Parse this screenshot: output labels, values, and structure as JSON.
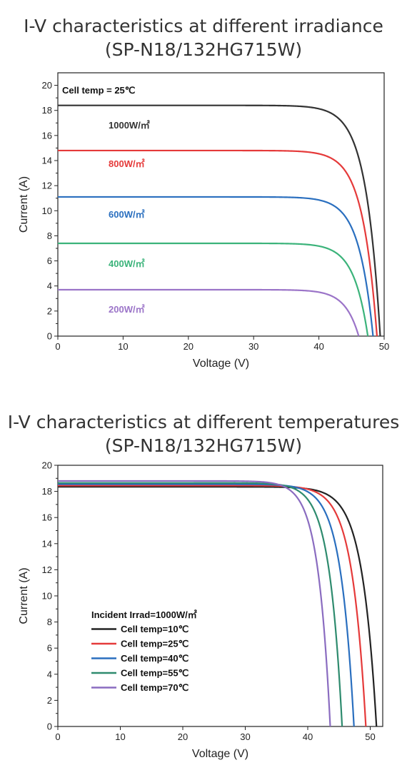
{
  "chart_data": [
    {
      "type": "line",
      "title": "I-V characteristics at different irradiance",
      "subtitle": "(SP-N18/132HG715W)",
      "xlabel": "Voltage (V)",
      "ylabel": "Current (A)",
      "xlim": [
        0,
        50
      ],
      "ylim": [
        0,
        21
      ],
      "xticks": [
        0,
        10,
        20,
        30,
        40,
        50
      ],
      "yticks": [
        0,
        2,
        4,
        6,
        8,
        10,
        12,
        14,
        16,
        18,
        20
      ],
      "annotation": "Cell temp = 25℃",
      "series": [
        {
          "name": "1000W/㎡",
          "color": "#333333",
          "isc": 18.4,
          "voc": 49.4
        },
        {
          "name": "800W/㎡",
          "color": "#e53a3a",
          "isc": 14.8,
          "voc": 48.9
        },
        {
          "name": "600W/㎡",
          "color": "#2a6fbf",
          "isc": 11.1,
          "voc": 48.3
        },
        {
          "name": "400W/㎡",
          "color": "#3bb37a",
          "isc": 7.4,
          "voc": 47.5
        },
        {
          "name": "200W/㎡",
          "color": "#9b74c8",
          "isc": 3.7,
          "voc": 46.1
        }
      ]
    },
    {
      "type": "line",
      "title": "I-V characteristics at different temperatures",
      "subtitle": "(SP-N18/132HG715W)",
      "xlabel": "Voltage (V)",
      "ylabel": "Current (A)",
      "xlim": [
        0,
        52
      ],
      "ylim": [
        0,
        20
      ],
      "xticks": [
        0,
        10,
        20,
        30,
        40,
        50
      ],
      "yticks": [
        0,
        2,
        4,
        6,
        8,
        10,
        12,
        14,
        16,
        18,
        20
      ],
      "legend_title": "Incident Irrad=1000W/㎡",
      "legend_position": "bottom-left",
      "series": [
        {
          "name": "Cell temp=10℃",
          "color": "#222222",
          "isc": 18.35,
          "voc": 51.0
        },
        {
          "name": "Cell temp=25℃",
          "color": "#e53a3a",
          "isc": 18.45,
          "voc": 49.3
        },
        {
          "name": "Cell temp=40℃",
          "color": "#2a6fbf",
          "isc": 18.55,
          "voc": 47.4
        },
        {
          "name": "Cell temp=55℃",
          "color": "#2e8b6e",
          "isc": 18.65,
          "voc": 45.5
        },
        {
          "name": "Cell temp=70℃",
          "color": "#8a6cc0",
          "isc": 18.8,
          "voc": 43.6
        }
      ]
    }
  ]
}
